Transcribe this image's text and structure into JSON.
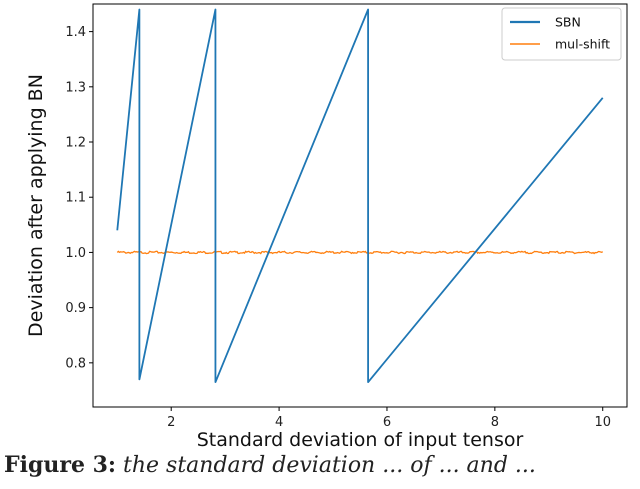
{
  "chart_data": {
    "type": "line",
    "xlabel": "Standard deviation of input tensor",
    "ylabel": "Deviation after applying BN",
    "xlim": [
      0.55,
      10.45
    ],
    "ylim": [
      0.72,
      1.45
    ],
    "xticks": [
      2,
      4,
      6,
      8,
      10
    ],
    "yticks": [
      0.8,
      0.9,
      1.0,
      1.1,
      1.2,
      1.3,
      1.4
    ],
    "ytick_labels": [
      "0.8",
      "0.9",
      "1.0",
      "1.1",
      "1.2",
      "1.3",
      "1.4"
    ],
    "grid": false,
    "legend_position": "top-right",
    "series": [
      {
        "name": "SBN",
        "color": "#1f77b4",
        "x": [
          1.0,
          1.41,
          1.41,
          2.82,
          2.82,
          5.65,
          5.65,
          10.0
        ],
        "y": [
          1.04,
          1.44,
          0.77,
          1.44,
          0.765,
          1.44,
          0.765,
          1.28
        ]
      },
      {
        "name": "mul-shift",
        "color": "#ff7f0e",
        "x_range": [
          1.0,
          10.0
        ],
        "value": 1.0,
        "noise_amplitude": 0.002
      }
    ]
  },
  "caption": {
    "label": "Figure 3:",
    "text": " the standard deviation ... of ... and ..."
  }
}
